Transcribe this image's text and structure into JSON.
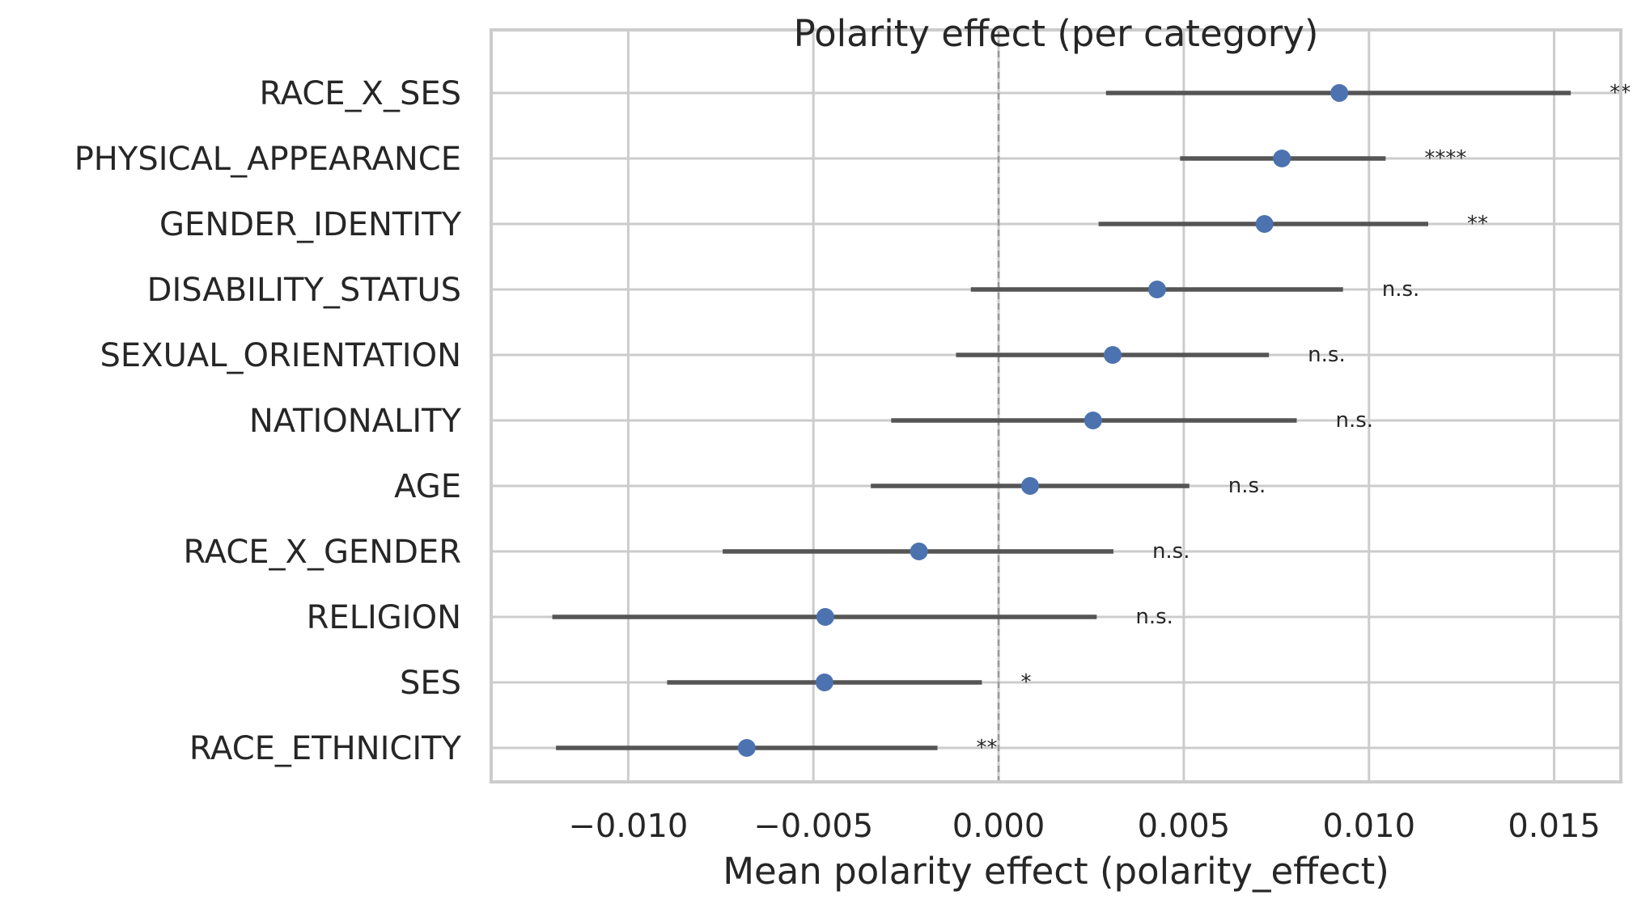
{
  "chart_data": {
    "type": "scatter",
    "title": "Polarity effect (per category)",
    "xlabel": "Mean polarity effect (polarity_effect)",
    "ylabel": "",
    "xlim": [
      -0.0137,
      0.0168
    ],
    "xticks": [
      -0.01,
      -0.005,
      0.0,
      0.005,
      0.01,
      0.015
    ],
    "xtick_labels": [
      "−0.010",
      "−0.005",
      "0.000",
      "0.005",
      "0.010",
      "0.015"
    ],
    "reference_line": 0.0,
    "grid": true,
    "categories": [
      "RACE_X_SES",
      "PHYSICAL_APPEARANCE",
      "GENDER_IDENTITY",
      "DISABILITY_STATUS",
      "SEXUAL_ORIENTATION",
      "NATIONALITY",
      "AGE",
      "RACE_X_GENDER",
      "RELIGION",
      "SES",
      "RACE_ETHNICITY"
    ],
    "means": [
      0.0092,
      0.00765,
      0.00718,
      0.00428,
      0.00308,
      0.00255,
      0.00085,
      -0.00215,
      -0.00468,
      -0.0047,
      -0.0068
    ],
    "ci_low": [
      0.0029,
      0.0049,
      0.0027,
      -0.00075,
      -0.00115,
      -0.0029,
      -0.00345,
      -0.00745,
      -0.01205,
      -0.00895,
      -0.01195
    ],
    "ci_high": [
      0.01545,
      0.01045,
      0.0116,
      0.0093,
      0.0073,
      0.00805,
      0.00515,
      0.0031,
      0.00265,
      -0.00045,
      -0.00165
    ],
    "significance": [
      "**",
      "****",
      "**",
      "n.s.",
      "n.s.",
      "n.s.",
      "n.s.",
      "n.s.",
      "n.s.",
      "*",
      "**"
    ],
    "colors": {
      "point": "#4c72b0",
      "errorbar": "#555555",
      "grid": "#cccccc",
      "spine": "#cccccc",
      "zero_line": "#999999"
    }
  }
}
